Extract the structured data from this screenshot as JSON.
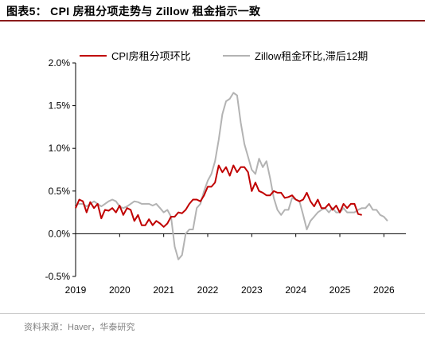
{
  "figure": {
    "title": "图表5： CPI 房租分项走势与 Zillow 租金指示一致",
    "source": "资料来源：Haver，华泰研究"
  },
  "colors": {
    "cpi": "#c00000",
    "zillow": "#b3b3b3",
    "title_rule": "#8a1b1b"
  },
  "chart_data": {
    "type": "line",
    "title": "",
    "xlabel": "",
    "ylabel": "",
    "xlim": [
      2019.0,
      2026.5
    ],
    "ylim": [
      -0.5,
      2.0
    ],
    "y_ticks": [
      -0.5,
      0.0,
      0.5,
      1.0,
      1.5,
      2.0
    ],
    "y_tick_labels": [
      "-0.5%",
      "0.0%",
      "0.5%",
      "1.0%",
      "1.5%",
      "2.0%"
    ],
    "x_ticks": [
      2019,
      2020,
      2021,
      2022,
      2023,
      2024,
      2025,
      2026
    ],
    "x_tick_labels": [
      "2019",
      "2020",
      "2021",
      "2022",
      "2023",
      "2024",
      "2025",
      "2026"
    ],
    "grid": false,
    "legend_position": "top",
    "series": [
      {
        "name": "CPI房租分项环比",
        "color": "#c00000",
        "x_start": 2019.0,
        "x_step": 0.08333,
        "values": [
          0.3,
          0.4,
          0.38,
          0.25,
          0.37,
          0.3,
          0.35,
          0.18,
          0.28,
          0.27,
          0.3,
          0.25,
          0.33,
          0.22,
          0.3,
          0.28,
          0.15,
          0.22,
          0.1,
          0.1,
          0.17,
          0.1,
          0.15,
          0.12,
          0.08,
          0.12,
          0.2,
          0.2,
          0.25,
          0.24,
          0.28,
          0.35,
          0.4,
          0.4,
          0.38,
          0.45,
          0.55,
          0.55,
          0.6,
          0.8,
          0.72,
          0.78,
          0.68,
          0.8,
          0.72,
          0.78,
          0.78,
          0.72,
          0.5,
          0.6,
          0.5,
          0.48,
          0.45,
          0.45,
          0.5,
          0.48,
          0.48,
          0.42,
          0.43,
          0.45,
          0.4,
          0.38,
          0.4,
          0.48,
          0.38,
          0.32,
          0.4,
          0.3,
          0.3,
          0.35,
          0.28,
          0.33,
          0.25,
          0.35,
          0.3,
          0.35,
          0.35,
          0.23,
          0.22
        ]
      },
      {
        "name": "Zillow租金环比,滞后12期",
        "color": "#b3b3b3",
        "x_start": 2019.0,
        "x_step": 0.08333,
        "values": [
          0.35,
          0.35,
          0.35,
          0.32,
          0.35,
          0.38,
          0.35,
          0.32,
          0.35,
          0.38,
          0.4,
          0.38,
          0.32,
          0.3,
          0.32,
          0.35,
          0.38,
          0.37,
          0.35,
          0.35,
          0.35,
          0.33,
          0.35,
          0.3,
          0.25,
          0.28,
          0.2,
          -0.15,
          -0.3,
          -0.25,
          0.0,
          0.05,
          0.05,
          0.3,
          0.35,
          0.5,
          0.62,
          0.7,
          0.85,
          1.1,
          1.4,
          1.55,
          1.58,
          1.65,
          1.62,
          1.3,
          1.05,
          0.9,
          0.75,
          0.7,
          0.88,
          0.78,
          0.85,
          0.65,
          0.42,
          0.28,
          0.22,
          0.28,
          0.28,
          0.42,
          0.4,
          0.38,
          0.22,
          0.05,
          0.15,
          0.2,
          0.25,
          0.28,
          0.3,
          0.25,
          0.3,
          0.25,
          0.25,
          0.3,
          0.25,
          0.25,
          0.25,
          0.28,
          0.3,
          0.3,
          0.35,
          0.28,
          0.28,
          0.22,
          0.2,
          0.15
        ]
      }
    ]
  }
}
